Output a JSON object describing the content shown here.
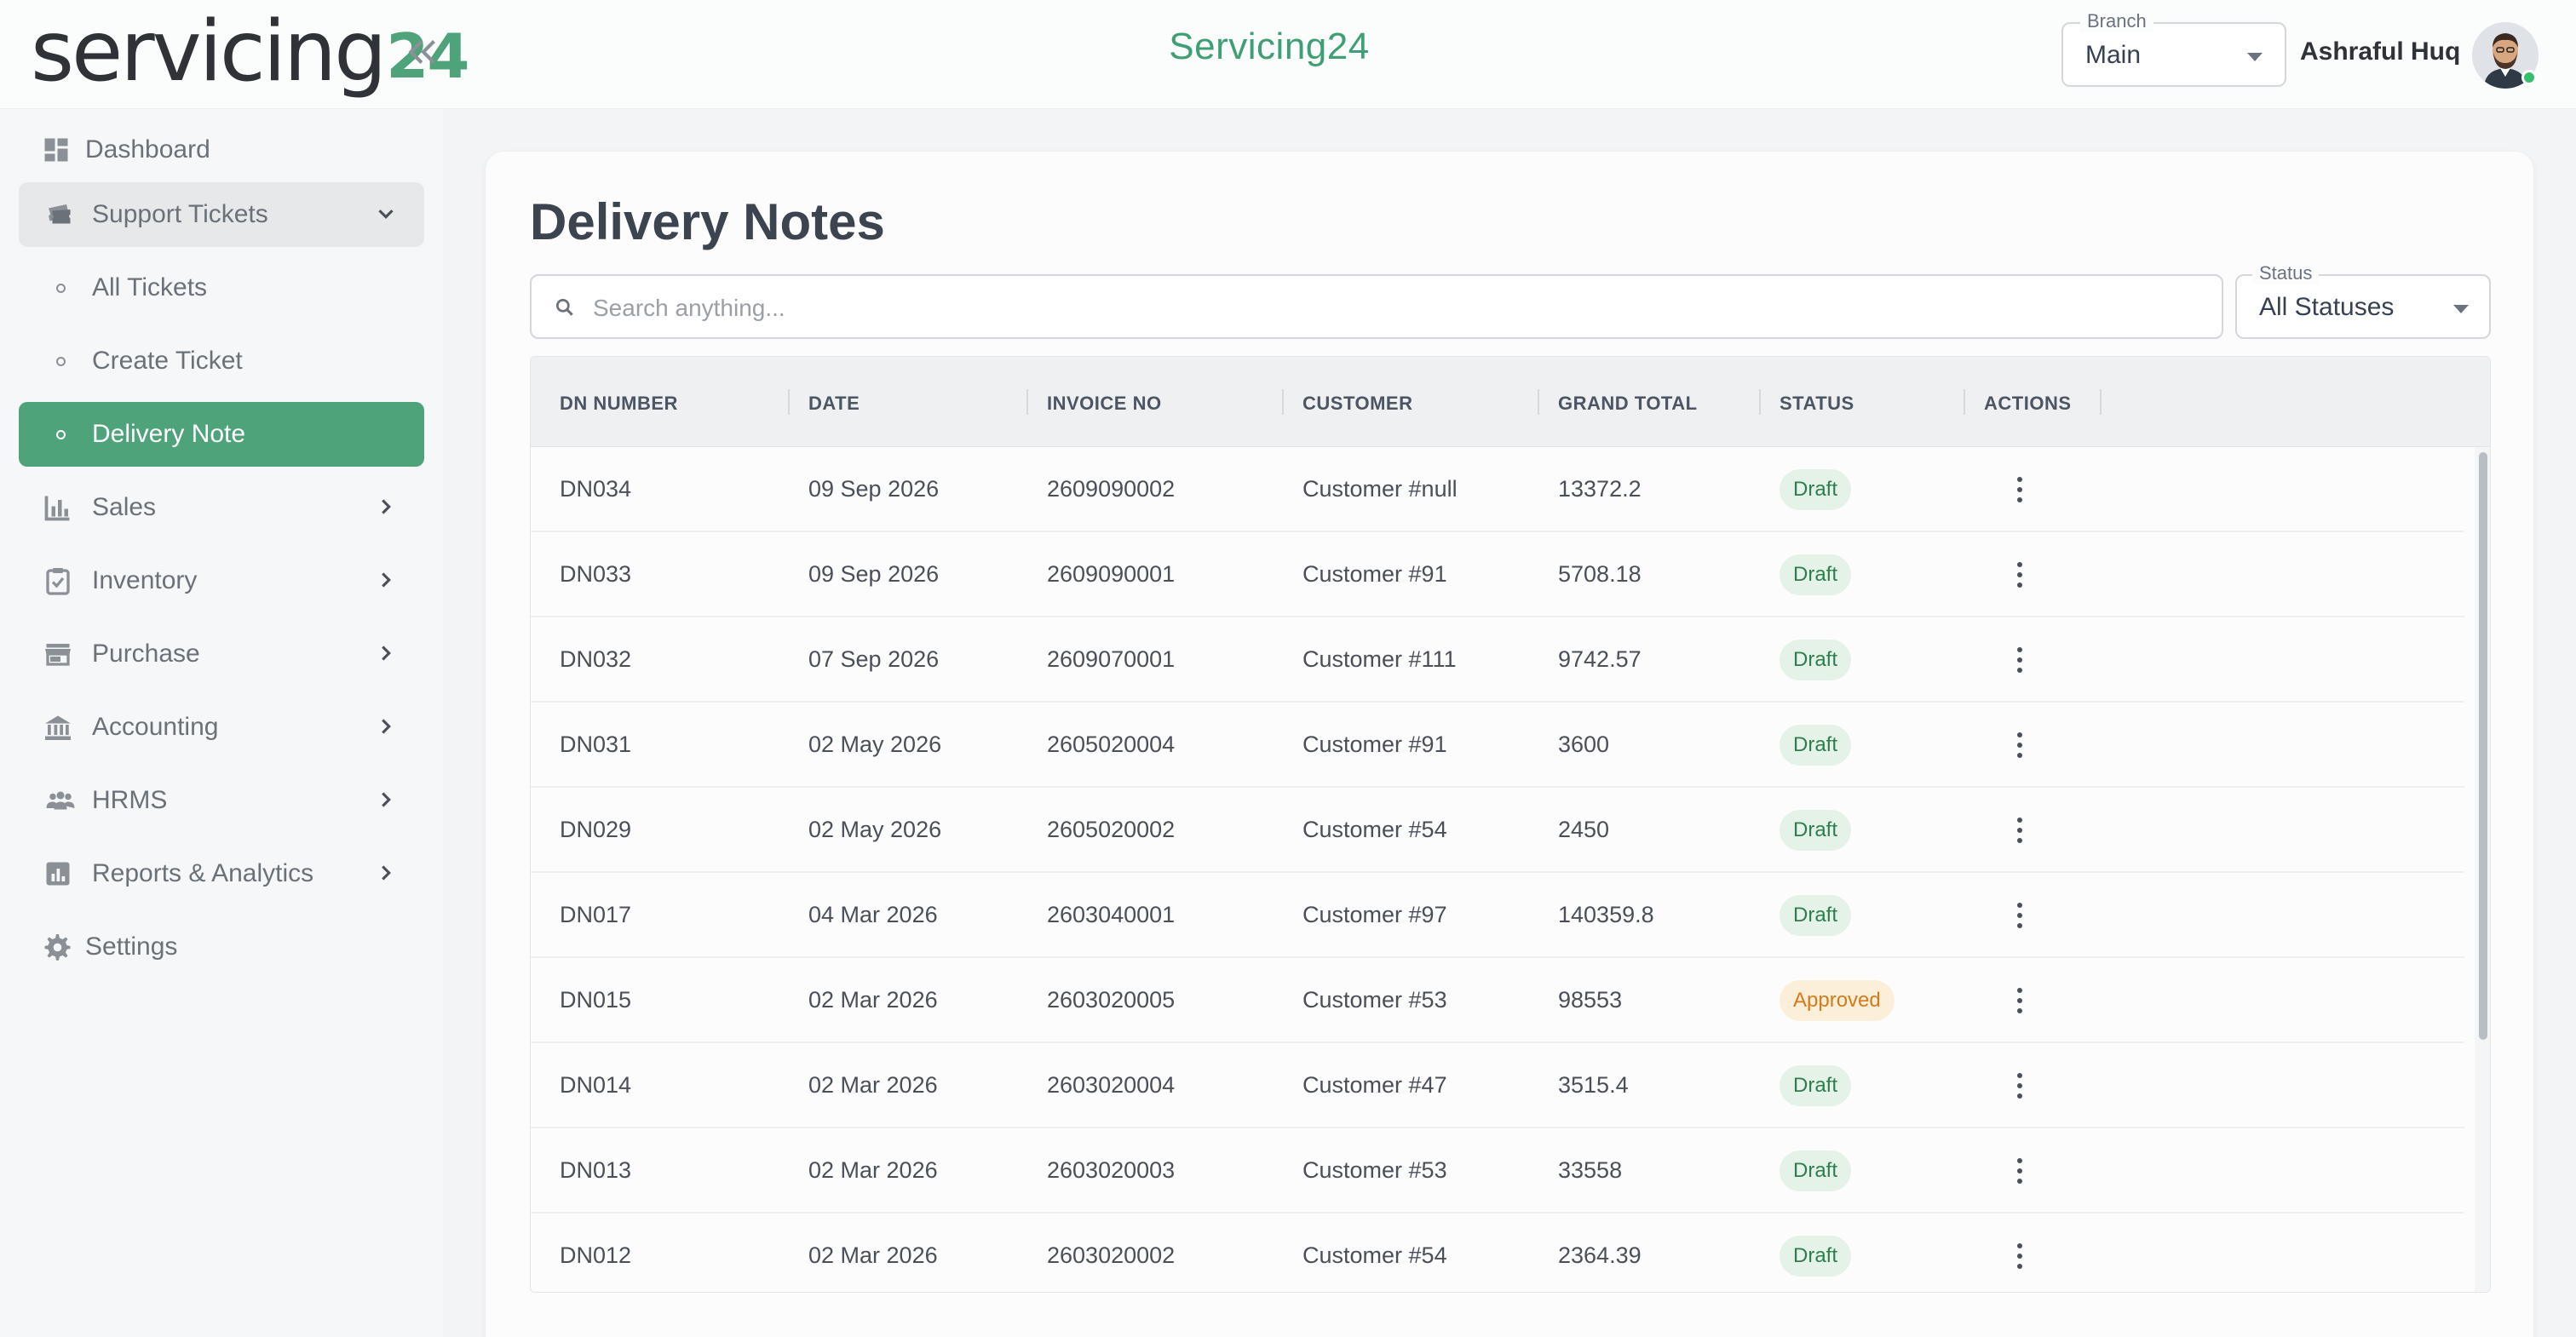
{
  "brand": {
    "logo_text": "servicing",
    "logo_number": "24",
    "app_title": "Servicing24",
    "accent_color": "#4fa37a"
  },
  "header": {
    "branch_label": "Branch",
    "branch_value": "Main",
    "user_name": "Ashraful Huq",
    "collapse_icon": "double-chevron-left-icon"
  },
  "sidebar": {
    "items": [
      {
        "label": "Dashboard",
        "icon": "dashboard-icon"
      },
      {
        "label": "Support Tickets",
        "icon": "tickets-icon",
        "expanded": true
      },
      {
        "label": "All Tickets",
        "sub": true
      },
      {
        "label": "Create Ticket",
        "sub": true
      },
      {
        "label": "Delivery Note",
        "sub": true,
        "active": true
      },
      {
        "label": "Sales",
        "icon": "bar-chart-icon"
      },
      {
        "label": "Inventory",
        "icon": "clipboard-check-icon"
      },
      {
        "label": "Purchase",
        "icon": "store-icon"
      },
      {
        "label": "Accounting",
        "icon": "bank-icon"
      },
      {
        "label": "HRMS",
        "icon": "people-icon"
      },
      {
        "label": "Reports & Analytics",
        "icon": "analytics-icon"
      },
      {
        "label": "Settings",
        "icon": "gear-icon"
      }
    ]
  },
  "main": {
    "title": "Delivery Notes",
    "search_placeholder": "Search anything...",
    "status_label": "Status",
    "status_value": "All Statuses",
    "columns": [
      "DN NUMBER",
      "DATE",
      "INVOICE NO",
      "CUSTOMER",
      "GRAND TOTAL",
      "STATUS",
      "ACTIONS"
    ],
    "rows": [
      {
        "dn": "DN034",
        "date": "09 Sep 2026",
        "invoice": "2609090002",
        "customer": "Customer #null",
        "total": "13372.2",
        "status": "Draft"
      },
      {
        "dn": "DN033",
        "date": "09 Sep 2026",
        "invoice": "2609090001",
        "customer": "Customer #91",
        "total": "5708.18",
        "status": "Draft"
      },
      {
        "dn": "DN032",
        "date": "07 Sep 2026",
        "invoice": "2609070001",
        "customer": "Customer #111",
        "total": "9742.57",
        "status": "Draft"
      },
      {
        "dn": "DN031",
        "date": "02 May 2026",
        "invoice": "2605020004",
        "customer": "Customer #91",
        "total": "3600",
        "status": "Draft"
      },
      {
        "dn": "DN029",
        "date": "02 May 2026",
        "invoice": "2605020002",
        "customer": "Customer #54",
        "total": "2450",
        "status": "Draft"
      },
      {
        "dn": "DN017",
        "date": "04 Mar 2026",
        "invoice": "2603040001",
        "customer": "Customer #97",
        "total": "140359.8",
        "status": "Draft"
      },
      {
        "dn": "DN015",
        "date": "02 Mar 2026",
        "invoice": "2603020005",
        "customer": "Customer #53",
        "total": "98553",
        "status": "Approved"
      },
      {
        "dn": "DN014",
        "date": "02 Mar 2026",
        "invoice": "2603020004",
        "customer": "Customer #47",
        "total": "3515.4",
        "status": "Draft"
      },
      {
        "dn": "DN013",
        "date": "02 Mar 2026",
        "invoice": "2603020003",
        "customer": "Customer #53",
        "total": "33558",
        "status": "Draft"
      },
      {
        "dn": "DN012",
        "date": "02 Mar 2026",
        "invoice": "2603020002",
        "customer": "Customer #54",
        "total": "2364.39",
        "status": "Draft"
      }
    ],
    "status_colors": {
      "Draft": "#2e7d4f",
      "Approved": "#d47b1b"
    }
  }
}
